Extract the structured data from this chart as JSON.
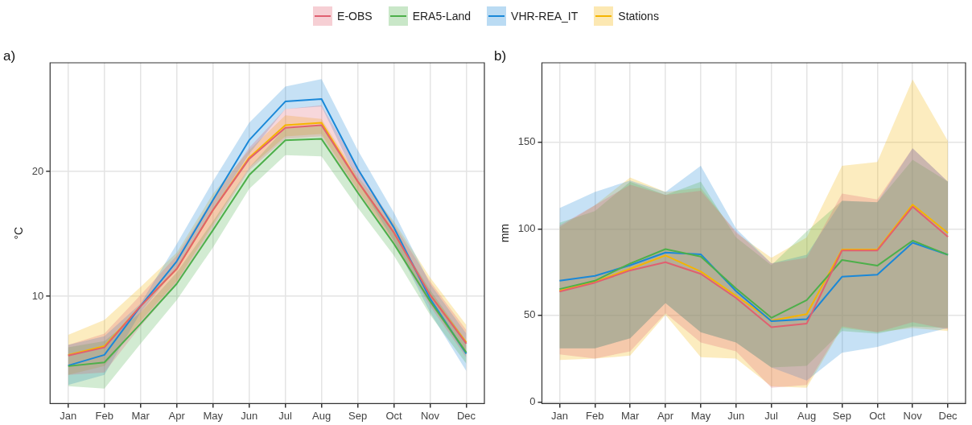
{
  "chart_data": [
    {
      "type": "line",
      "title": "a)",
      "ylabel": "°C",
      "legend": "top",
      "grid": true,
      "marker": "none",
      "categories": [
        "Jan",
        "Feb",
        "Mar",
        "Apr",
        "May",
        "Jun",
        "Jul",
        "Aug",
        "Sep",
        "Oct",
        "Nov",
        "Dec"
      ],
      "ylim": [
        1.4,
        28.7
      ],
      "yticks": [
        10,
        20
      ],
      "series": [
        {
          "name": "E-OBS",
          "color": "#e06070",
          "values": [
            5.25,
            5.9,
            9.2,
            12.2,
            16.9,
            21.0,
            23.5,
            23.7,
            19.2,
            15.1,
            10.1,
            6.2
          ],
          "lower": [
            3.7,
            3.9,
            7.6,
            11.0,
            15.5,
            20.1,
            22.6,
            22.8,
            18.25,
            14.2,
            9.2,
            5.1
          ],
          "upper": [
            6.1,
            7.0,
            10.1,
            13.25,
            17.8,
            21.9,
            25.0,
            25.3,
            20.3,
            15.75,
            11.2,
            7.3
          ]
        },
        {
          "name": "ERA5-Land",
          "color": "#4daf4a",
          "values": [
            4.4,
            4.7,
            7.8,
            11.0,
            15.3,
            19.7,
            22.5,
            22.6,
            18.3,
            14.2,
            9.6,
            5.5
          ],
          "lower": [
            2.8,
            2.6,
            6.2,
            9.7,
            13.9,
            18.6,
            21.3,
            21.2,
            17.1,
            13.25,
            8.5,
            4.6
          ],
          "upper": [
            5.9,
            6.4,
            8.7,
            11.9,
            16.0,
            20.3,
            23.5,
            23.7,
            19.2,
            15.1,
            10.5,
            6.4
          ]
        },
        {
          "name": "VHR-REA_IT",
          "color": "#1a88d8",
          "values": [
            4.45,
            5.3,
            9.2,
            12.8,
            17.7,
            22.5,
            25.6,
            25.8,
            20.2,
            15.5,
            9.8,
            5.4
          ],
          "lower": [
            2.9,
            3.7,
            8.7,
            12.3,
            16.9,
            21.4,
            25.0,
            25.2,
            19.2,
            14.4,
            8.7,
            4.0
          ],
          "upper": [
            6.1,
            6.8,
            9.4,
            14.2,
            19.2,
            23.9,
            26.8,
            27.4,
            21.7,
            16.7,
            11.0,
            7.0
          ]
        },
        {
          "name": "Stations",
          "color": "#f5b400",
          "values": [
            5.3,
            6.0,
            9.2,
            12.2,
            16.9,
            21.1,
            23.7,
            23.9,
            19.2,
            15.1,
            10.1,
            6.3
          ],
          "lower": [
            3.7,
            4.4,
            8.0,
            11.2,
            15.75,
            20.3,
            22.8,
            23.0,
            18.5,
            14.4,
            9.4,
            5.3
          ],
          "upper": [
            6.9,
            8.1,
            10.75,
            13.5,
            18.2,
            21.7,
            24.5,
            24.2,
            19.6,
            16.0,
            11.5,
            7.7
          ]
        }
      ]
    },
    {
      "type": "line",
      "title": "b)",
      "ylabel": "mm",
      "grid": true,
      "marker": "none",
      "categories": [
        "Jan",
        "Feb",
        "Mar",
        "Apr",
        "May",
        "Jun",
        "Jul",
        "Aug",
        "Sep",
        "Oct",
        "Nov",
        "Dec"
      ],
      "ylim": [
        -1,
        196
      ],
      "yticks": [
        0,
        50,
        100,
        150
      ],
      "series": [
        {
          "name": "E-OBS",
          "color": "#e06070",
          "values": [
            63.7,
            68.9,
            76,
            80.7,
            74,
            60,
            43.2,
            45.3,
            87.5,
            87.5,
            112.8,
            95.4
          ],
          "lower": [
            27.5,
            25,
            29.2,
            51.2,
            34.3,
            29.2,
            8.1,
            9.8,
            43.6,
            40.2,
            46.1,
            41.9
          ],
          "upper": [
            101.9,
            113.7,
            125.5,
            119.6,
            122,
            98.5,
            80,
            83.3,
            120.4,
            117,
            146.6,
            127.2
          ]
        },
        {
          "name": "ERA5-Land",
          "color": "#4daf4a",
          "values": [
            65.2,
            70,
            80,
            88.3,
            84,
            65.5,
            48.6,
            58.8,
            82,
            78.7,
            93.2,
            85
          ],
          "lower": [
            30.9,
            30.9,
            36.8,
            57.1,
            40.2,
            34.3,
            19.9,
            20.8,
            41,
            39.4,
            43.6,
            42.7
          ],
          "upper": [
            103.5,
            110.3,
            127.2,
            119.6,
            127.2,
            95,
            79,
            98.5,
            116.2,
            115.4,
            139.9,
            127.2
          ]
        },
        {
          "name": "VHR-REA_IT",
          "color": "#1a88d8",
          "values": [
            70,
            72.8,
            79,
            86.3,
            85.3,
            64,
            46.6,
            47.8,
            72.3,
            73.5,
            92,
            85
          ],
          "lower": [
            30.9,
            30.9,
            36.8,
            57.1,
            40.2,
            34.3,
            19.9,
            12.3,
            28.4,
            31.8,
            37.7,
            42.7
          ],
          "upper": [
            112,
            121.3,
            128,
            121.3,
            136.5,
            100.2,
            80,
            85,
            116.2,
            115.4,
            146.6,
            127.2
          ]
        },
        {
          "name": "Stations",
          "color": "#f5b400",
          "values": [
            64.2,
            69.4,
            76.9,
            84.6,
            75.3,
            61.3,
            47,
            50.7,
            88,
            88,
            114,
            97.6
          ],
          "lower": [
            24.2,
            25,
            26.7,
            50.3,
            25.8,
            25,
            9,
            8.1,
            42.7,
            40.2,
            42.7,
            41
          ],
          "upper": [
            101,
            113.7,
            129.7,
            121.3,
            123.8,
            97.6,
            83.3,
            95,
            136.5,
            138.7,
            186.3,
            150.8
          ]
        }
      ]
    }
  ]
}
